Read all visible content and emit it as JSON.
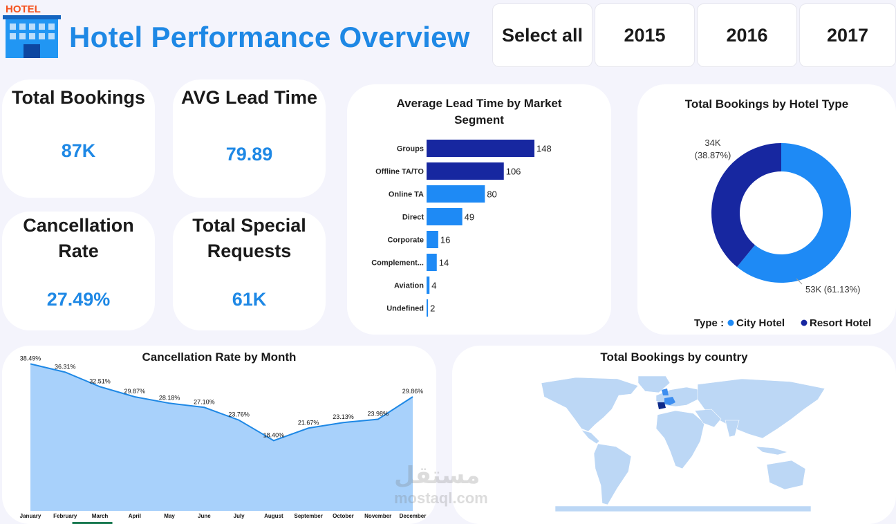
{
  "header": {
    "logo_text": "HOTEL",
    "title": "Hotel Performance Overview"
  },
  "slicer": {
    "options": [
      "Select all",
      "2015",
      "2016",
      "2017"
    ]
  },
  "kpis": {
    "total_bookings": {
      "label": "Total Bookings",
      "value": "87K"
    },
    "avg_lead_time": {
      "label": "AVG Lead Time",
      "value": "79.89"
    },
    "cancellation_rate": {
      "label_line1": "Cancellation",
      "label_line2": "Rate",
      "value": "27.49%"
    },
    "special_requests": {
      "label_line1": "Total Special",
      "label_line2": "Requests",
      "value": "61K"
    }
  },
  "colors": {
    "dark_blue": "#1727a0",
    "light_blue": "#1e8af5",
    "kpi_blue": "#1e88e5",
    "area_fill": "#a8d1fb",
    "area_line": "#1e88e5"
  },
  "chart_data": [
    {
      "type": "bar",
      "orientation": "horizontal",
      "title": "Average Lead Time by Market Segment",
      "categories": [
        "Groups",
        "Offline TA/TO",
        "Online TA",
        "Direct",
        "Corporate",
        "Complement...",
        "Aviation",
        "Undefined"
      ],
      "values": [
        148,
        106,
        80,
        49,
        16,
        14,
        4,
        2
      ],
      "highlight_top": 2
    },
    {
      "type": "pie",
      "variant": "donut",
      "title": "Total Bookings by Hotel Type",
      "legend_title": "Type :",
      "labels": [
        "City Hotel",
        "Resort Hotel"
      ],
      "values": [
        53,
        34
      ],
      "value_labels": [
        "53K (61.13%)",
        "34K (38.87%)"
      ],
      "value_label_resort_line1": "34K",
      "value_label_resort_line2": "(38.87%)",
      "percents": [
        61.13,
        38.87
      ]
    },
    {
      "type": "area",
      "title": "Cancellation Rate by Month",
      "x": [
        "January",
        "February",
        "March",
        "April",
        "May",
        "June",
        "July",
        "August",
        "September",
        "October",
        "November",
        "December"
      ],
      "values": [
        38.49,
        36.31,
        32.51,
        29.87,
        28.18,
        27.1,
        23.76,
        18.4,
        21.67,
        23.13,
        23.98,
        29.86
      ],
      "data_labels": [
        "38.49%",
        "36.31%",
        "32.51%",
        "29.87%",
        "28.18%",
        "27.10%",
        "23.76%",
        "18.40%",
        "21.67%",
        "23.13%",
        "23.98%",
        "29.86%"
      ],
      "ylim": [
        0,
        40
      ]
    }
  ],
  "map": {
    "title": "Total Bookings by country"
  },
  "watermark": {
    "arabic": "مستقل",
    "latin": "mostaql.com"
  }
}
